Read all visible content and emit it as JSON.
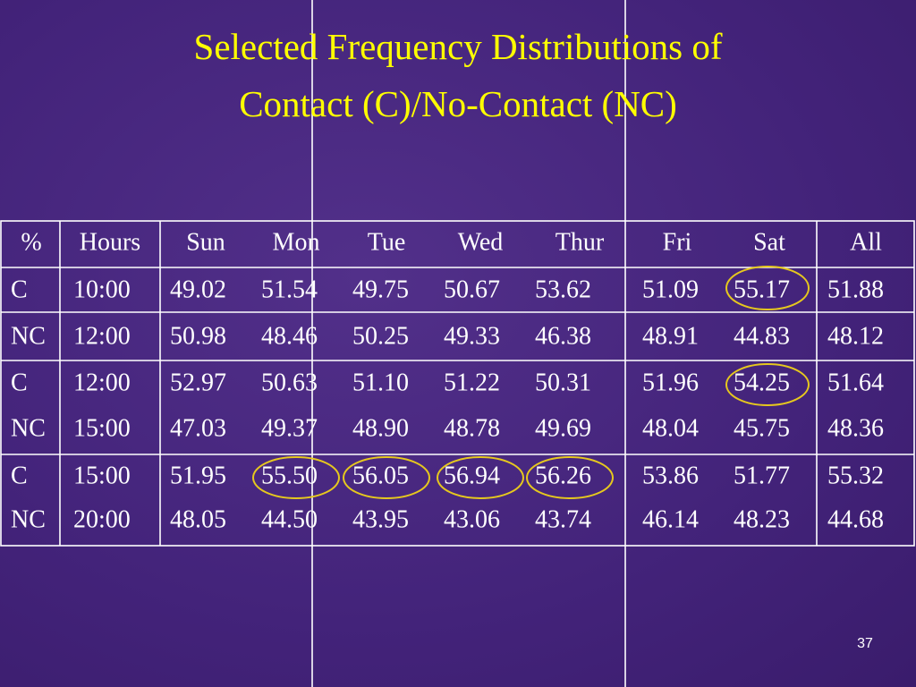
{
  "header": {
    "title": [
      "Selected Frequency Distributions of",
      "Contact (C)/No-Contact (NC)"
    ]
  },
  "table": {
    "columns": [
      "%",
      "Hours",
      "Sun",
      "Mon",
      "Tue",
      "Wed",
      "Thur",
      "Fri",
      "Sat",
      "All"
    ],
    "rows": [
      [
        "C",
        "10:00",
        "49.02",
        "51.54",
        "49.75",
        "50.67",
        "53.62",
        "51.09",
        "55.17",
        "51.88"
      ],
      [
        "NC",
        "12:00",
        "50.98",
        "48.46",
        "50.25",
        "49.33",
        "46.38",
        "48.91",
        "44.83",
        "48.12"
      ],
      [
        "C",
        "12:00",
        "52.97",
        "50.63",
        "51.10",
        "51.22",
        "50.31",
        "51.96",
        "54.25",
        "51.64"
      ],
      [
        "NC",
        "15:00",
        "47.03",
        "49.37",
        "48.90",
        "48.78",
        "49.69",
        "48.04",
        "45.75",
        "48.36"
      ],
      [
        "C",
        "15:00",
        "51.95",
        "55.50",
        "56.05",
        "56.94",
        "56.26",
        "53.86",
        "51.77",
        "55.32"
      ],
      [
        "NC",
        "20:00",
        "48.05",
        "44.50",
        "43.95",
        "43.06",
        "43.74",
        "46.14",
        "48.23",
        "44.68"
      ]
    ]
  },
  "footer": {
    "page_number": "37"
  }
}
